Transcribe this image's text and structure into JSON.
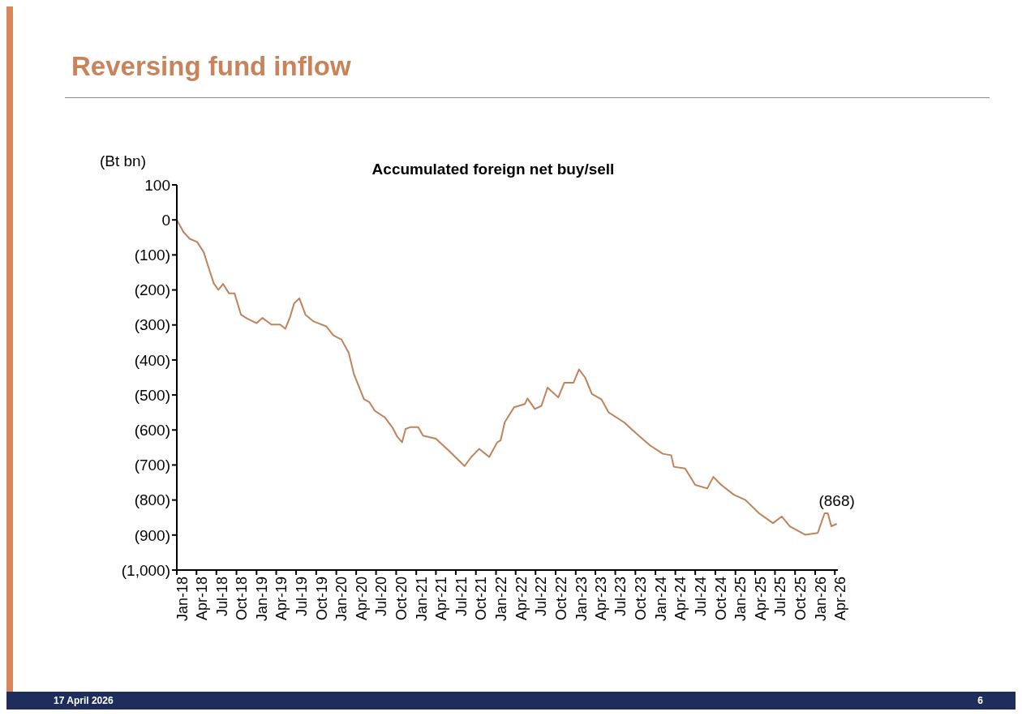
{
  "chart_data": {
    "type": "line",
    "title": "Reversing fund inflow",
    "subtitle": "Accumulated foreign net buy/sell",
    "ylabel": "(Bt bn)",
    "x": [
      "2018-01-01",
      "2018-02-01",
      "2018-03-01",
      "2018-04-04",
      "2018-05-04",
      "2018-05-28",
      "2018-06-19",
      "2018-07-10",
      "2018-08-01",
      "2018-08-28",
      "2018-09-22",
      "2018-10-22",
      "2018-11-19",
      "2019-01-01",
      "2019-01-28",
      "2019-03-10",
      "2019-04-19",
      "2019-05-13",
      "2019-06-04",
      "2019-06-22",
      "2019-07-16",
      "2019-08-13",
      "2019-09-19",
      "2019-11-16",
      "2019-12-19",
      "2020-01-25",
      "2020-02-27",
      "2020-03-22",
      "2020-05-07",
      "2020-06-01",
      "2020-06-25",
      "2020-08-10",
      "2020-09-13",
      "2020-10-07",
      "2020-10-28",
      "2020-11-13",
      "2020-12-04",
      "2021-01-10",
      "2021-02-01",
      "2021-04-01",
      "2021-05-28",
      "2021-08-10",
      "2021-09-10",
      "2021-10-16",
      "2021-12-01",
      "2022-01-07",
      "2022-01-22",
      "2022-02-10",
      "2022-03-25",
      "2022-05-13",
      "2022-05-25",
      "2022-06-28",
      "2022-07-28",
      "2022-08-25",
      "2022-10-13",
      "2022-11-10",
      "2022-12-22",
      "2023-01-16",
      "2023-02-13",
      "2023-03-16",
      "2023-04-28",
      "2023-06-01",
      "2023-08-10",
      "2023-10-07",
      "2023-12-07",
      "2024-02-04",
      "2024-03-13",
      "2024-03-25",
      "2024-05-16",
      "2024-07-01",
      "2024-08-25",
      "2024-09-22",
      "2024-10-28",
      "2024-12-25",
      "2025-02-16",
      "2025-04-19",
      "2025-06-22",
      "2025-08-01",
      "2025-09-07",
      "2025-11-16",
      "2026-01-13",
      "2026-02-13",
      "2026-02-28",
      "2026-03-16",
      "2026-04-10"
    ],
    "series": [
      {
        "color": "#c0825a",
        "values": [
          0,
          -35,
          -54,
          -63,
          -92,
          -139,
          -181,
          -200,
          -183,
          -210,
          -210,
          -271,
          -282,
          -295,
          -280,
          -299,
          -299,
          -311,
          -276,
          -238,
          -224,
          -271,
          -290,
          -304,
          -330,
          -342,
          -380,
          -441,
          -512,
          -521,
          -545,
          -564,
          -592,
          -620,
          -635,
          -597,
          -592,
          -592,
          -616,
          -625,
          -658,
          -703,
          -677,
          -654,
          -677,
          -635,
          -630,
          -578,
          -535,
          -526,
          -510,
          -540,
          -531,
          -479,
          -507,
          -465,
          -465,
          -427,
          -450,
          -497,
          -512,
          -550,
          -578,
          -611,
          -644,
          -668,
          -672,
          -705,
          -710,
          -757,
          -767,
          -734,
          -757,
          -785,
          -800,
          -838,
          -866,
          -847,
          -875,
          -899,
          -894,
          -838,
          -838,
          -875,
          -868
        ]
      }
    ],
    "xlim": [
      "2018-01-01",
      "2026-04-15"
    ],
    "xticks": [
      {
        "value": "2018-01-01",
        "label": "Jan-18"
      },
      {
        "value": "2018-04-01",
        "label": "Apr-18"
      },
      {
        "value": "2018-07-01",
        "label": "Jul-18"
      },
      {
        "value": "2018-10-01",
        "label": "Oct-18"
      },
      {
        "value": "2019-01-01",
        "label": "Jan-19"
      },
      {
        "value": "2019-04-01",
        "label": "Apr-19"
      },
      {
        "value": "2019-07-01",
        "label": "Jul-19"
      },
      {
        "value": "2019-10-01",
        "label": "Oct-19"
      },
      {
        "value": "2020-01-01",
        "label": "Jan-20"
      },
      {
        "value": "2020-04-01",
        "label": "Apr-20"
      },
      {
        "value": "2020-07-01",
        "label": "Jul-20"
      },
      {
        "value": "2020-10-01",
        "label": "Oct-20"
      },
      {
        "value": "2021-01-01",
        "label": "Jan-21"
      },
      {
        "value": "2021-04-01",
        "label": "Apr-21"
      },
      {
        "value": "2021-07-01",
        "label": "Jul-21"
      },
      {
        "value": "2021-10-01",
        "label": "Oct-21"
      },
      {
        "value": "2022-01-01",
        "label": "Jan-22"
      },
      {
        "value": "2022-04-01",
        "label": "Apr-22"
      },
      {
        "value": "2022-07-01",
        "label": "Jul-22"
      },
      {
        "value": "2022-10-01",
        "label": "Oct-22"
      },
      {
        "value": "2023-01-01",
        "label": "Jan-23"
      },
      {
        "value": "2023-04-01",
        "label": "Apr-23"
      },
      {
        "value": "2023-07-01",
        "label": "Jul-23"
      },
      {
        "value": "2023-10-01",
        "label": "Oct-23"
      },
      {
        "value": "2024-01-01",
        "label": "Jan-24"
      },
      {
        "value": "2024-04-01",
        "label": "Apr-24"
      },
      {
        "value": "2024-07-01",
        "label": "Jul-24"
      },
      {
        "value": "2024-10-01",
        "label": "Oct-24"
      },
      {
        "value": "2025-01-01",
        "label": "Jan-25"
      },
      {
        "value": "2025-04-01",
        "label": "Apr-25"
      },
      {
        "value": "2025-07-01",
        "label": "Jul-25"
      },
      {
        "value": "2025-10-01",
        "label": "Oct-25"
      },
      {
        "value": "2026-01-01",
        "label": "Jan-26"
      },
      {
        "value": "2026-04-01",
        "label": "Apr-26"
      }
    ],
    "ylim": [
      -1000,
      100
    ],
    "yticks": [
      100,
      0,
      {
        "value": -100,
        "label": "(100)"
      },
      {
        "value": -200,
        "label": "(200)"
      },
      {
        "value": -300,
        "label": "(300)"
      },
      {
        "value": -400,
        "label": "(400)"
      },
      {
        "value": -500,
        "label": "(500)"
      },
      {
        "value": -600,
        "label": "(600)"
      },
      {
        "value": -700,
        "label": "(700)"
      },
      {
        "value": -800,
        "label": "(800)"
      },
      {
        "value": -900,
        "label": "(900)"
      },
      {
        "value": -1000,
        "label": "(1,000)"
      }
    ],
    "annotations": [
      {
        "text": "(868)",
        "x": "2026-04-10",
        "y": -868
      },
      "17 April 2026",
      "6"
    ]
  }
}
